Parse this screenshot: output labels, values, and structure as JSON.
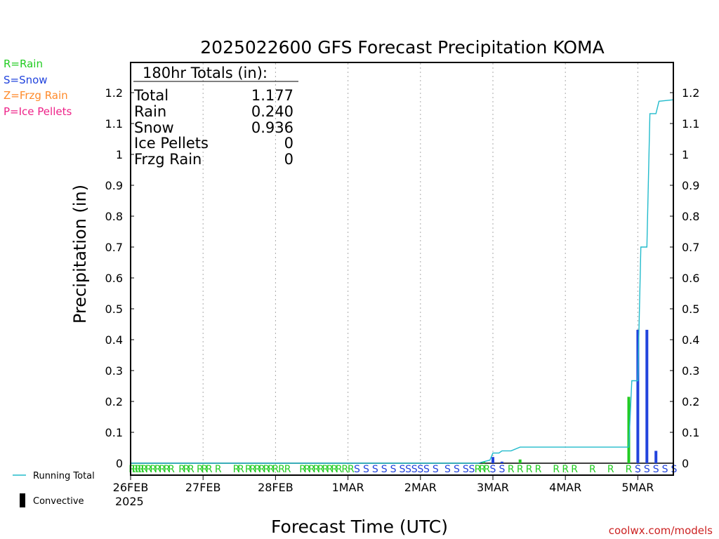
{
  "chart_data": {
    "type": "bar",
    "title": "2025022600 GFS Forecast Precipitation KOMA",
    "xlabel": "Forecast Time (UTC)",
    "ylabel": "Precipitation (in)",
    "ylim": [
      0,
      1.3
    ],
    "y_ticks": [
      "0",
      "0.1",
      "0.2",
      "0.3",
      "0.4",
      "0.5",
      "0.6",
      "0.7",
      "0.8",
      "0.9",
      "1",
      "1.1",
      "1.2"
    ],
    "x_range_hours": [
      0,
      180
    ],
    "x_ticks": [
      {
        "hour": 0,
        "label": "26FEB"
      },
      {
        "hour": 24,
        "label": "27FEB"
      },
      {
        "hour": 48,
        "label": "28FEB"
      },
      {
        "hour": 72,
        "label": "1MAR"
      },
      {
        "hour": 96,
        "label": "2MAR"
      },
      {
        "hour": 120,
        "label": "3MAR"
      },
      {
        "hour": 144,
        "label": "4MAR"
      },
      {
        "hour": 168,
        "label": "5MAR"
      }
    ],
    "first_tick_year": "2025",
    "grid": true,
    "colors": {
      "rain": "#22cc22",
      "snow": "#2244dd",
      "frzg_rain": "#ff8a2a",
      "ice_pellets": "#ee2288",
      "running_total": "#22bbcc",
      "convective": "#000000",
      "credit": "#cc2222"
    },
    "legend": {
      "rain": "R=Rain",
      "snow": "S=Snow",
      "frzg_rain": "Z=Frzg Rain",
      "ice_pellets": "P=Ice Pellets",
      "running_total": "Running Total",
      "convective": "Convective"
    },
    "totals": {
      "header": "180hr Totals (in):",
      "rows": [
        {
          "label": "Total",
          "value": "1.177"
        },
        {
          "label": "Rain",
          "value": "0.240"
        },
        {
          "label": "Snow",
          "value": "0.936"
        },
        {
          "label": "Ice Pellets",
          "value": "0"
        },
        {
          "label": "Frzg Rain",
          "value": "0"
        }
      ]
    },
    "bars": [
      {
        "hour": 117,
        "value": 0.005,
        "ptype": "R"
      },
      {
        "hour": 120,
        "value": 0.02,
        "ptype": "S"
      },
      {
        "hour": 123,
        "value": 0.005,
        "ptype": "S"
      },
      {
        "hour": 129,
        "value": 0.012,
        "ptype": "R"
      },
      {
        "hour": 165,
        "value": 0.215,
        "ptype": "R"
      },
      {
        "hour": 168,
        "value": 0.432,
        "ptype": "S"
      },
      {
        "hour": 171,
        "value": 0.432,
        "ptype": "S"
      },
      {
        "hour": 174,
        "value": 0.04,
        "ptype": "S"
      }
    ],
    "running_total": [
      {
        "hour": 0,
        "value": 0
      },
      {
        "hour": 115,
        "value": 0
      },
      {
        "hour": 117,
        "value": 0.005
      },
      {
        "hour": 119,
        "value": 0.01
      },
      {
        "hour": 120,
        "value": 0.033
      },
      {
        "hour": 122,
        "value": 0.033
      },
      {
        "hour": 123,
        "value": 0.04
      },
      {
        "hour": 126,
        "value": 0.04
      },
      {
        "hour": 129,
        "value": 0.052
      },
      {
        "hour": 165,
        "value": 0.052
      },
      {
        "hour": 166,
        "value": 0.267
      },
      {
        "hour": 168,
        "value": 0.267
      },
      {
        "hour": 169,
        "value": 0.7
      },
      {
        "hour": 171,
        "value": 0.7
      },
      {
        "hour": 172,
        "value": 1.132
      },
      {
        "hour": 174,
        "value": 1.132
      },
      {
        "hour": 175,
        "value": 1.172
      },
      {
        "hour": 180,
        "value": 1.177
      }
    ],
    "ptype_marks": [
      {
        "hour": 0.5,
        "t": "R"
      },
      {
        "hour": 1.5,
        "t": "R"
      },
      {
        "hour": 2.5,
        "t": "R"
      },
      {
        "hour": 3.5,
        "t": "R"
      },
      {
        "hour": 4.5,
        "t": "R"
      },
      {
        "hour": 6,
        "t": "R"
      },
      {
        "hour": 7.5,
        "t": "R"
      },
      {
        "hour": 9,
        "t": "R"
      },
      {
        "hour": 10.5,
        "t": "R"
      },
      {
        "hour": 12,
        "t": "R"
      },
      {
        "hour": 13.5,
        "t": "R"
      },
      {
        "hour": 17,
        "t": "R"
      },
      {
        "hour": 18.5,
        "t": "R"
      },
      {
        "hour": 20,
        "t": "R"
      },
      {
        "hour": 23,
        "t": "R"
      },
      {
        "hour": 24.5,
        "t": "R"
      },
      {
        "hour": 26,
        "t": "R"
      },
      {
        "hour": 29,
        "t": "R"
      },
      {
        "hour": 35,
        "t": "R"
      },
      {
        "hour": 36.5,
        "t": "R"
      },
      {
        "hour": 39,
        "t": "R"
      },
      {
        "hour": 40.5,
        "t": "R"
      },
      {
        "hour": 42,
        "t": "R"
      },
      {
        "hour": 43.5,
        "t": "R"
      },
      {
        "hour": 45,
        "t": "R"
      },
      {
        "hour": 46.5,
        "t": "R"
      },
      {
        "hour": 48,
        "t": "R"
      },
      {
        "hour": 50,
        "t": "R"
      },
      {
        "hour": 52,
        "t": "R"
      },
      {
        "hour": 57,
        "t": "R"
      },
      {
        "hour": 58.5,
        "t": "R"
      },
      {
        "hour": 60,
        "t": "R"
      },
      {
        "hour": 61.5,
        "t": "R"
      },
      {
        "hour": 63,
        "t": "R"
      },
      {
        "hour": 64.5,
        "t": "R"
      },
      {
        "hour": 66,
        "t": "R"
      },
      {
        "hour": 67.5,
        "t": "R"
      },
      {
        "hour": 69,
        "t": "R"
      },
      {
        "hour": 71,
        "t": "R"
      },
      {
        "hour": 73,
        "t": "R"
      },
      {
        "hour": 75,
        "t": "S"
      },
      {
        "hour": 78,
        "t": "S"
      },
      {
        "hour": 81,
        "t": "S"
      },
      {
        "hour": 84,
        "t": "S"
      },
      {
        "hour": 87,
        "t": "S"
      },
      {
        "hour": 90,
        "t": "S"
      },
      {
        "hour": 92,
        "t": "S"
      },
      {
        "hour": 94,
        "t": "S"
      },
      {
        "hour": 96,
        "t": "S"
      },
      {
        "hour": 98,
        "t": "S"
      },
      {
        "hour": 101,
        "t": "S"
      },
      {
        "hour": 105,
        "t": "S"
      },
      {
        "hour": 108,
        "t": "S"
      },
      {
        "hour": 111,
        "t": "S"
      },
      {
        "hour": 113,
        "t": "S"
      },
      {
        "hour": 115,
        "t": "R"
      },
      {
        "hour": 116.5,
        "t": "R"
      },
      {
        "hour": 118,
        "t": "R"
      },
      {
        "hour": 120,
        "t": "S"
      },
      {
        "hour": 123,
        "t": "S"
      },
      {
        "hour": 126,
        "t": "R"
      },
      {
        "hour": 129,
        "t": "R"
      },
      {
        "hour": 132,
        "t": "R"
      },
      {
        "hour": 135,
        "t": "R"
      },
      {
        "hour": 141,
        "t": "R"
      },
      {
        "hour": 144,
        "t": "R"
      },
      {
        "hour": 147,
        "t": "R"
      },
      {
        "hour": 153,
        "t": "R"
      },
      {
        "hour": 159,
        "t": "R"
      },
      {
        "hour": 165,
        "t": "R"
      },
      {
        "hour": 168,
        "t": "S"
      },
      {
        "hour": 171,
        "t": "S"
      },
      {
        "hour": 174,
        "t": "S"
      },
      {
        "hour": 177,
        "t": "S"
      },
      {
        "hour": 180,
        "t": "S"
      }
    ],
    "credit": "coolwx.com/models"
  }
}
